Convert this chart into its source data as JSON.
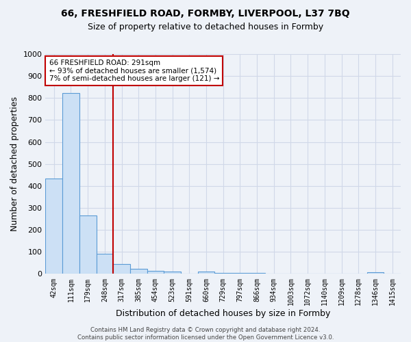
{
  "title1": "66, FRESHFIELD ROAD, FORMBY, LIVERPOOL, L37 7BQ",
  "title2": "Size of property relative to detached houses in Formby",
  "xlabel": "Distribution of detached houses by size in Formby",
  "ylabel": "Number of detached properties",
  "footnote": "Contains HM Land Registry data © Crown copyright and database right 2024.\nContains public sector information licensed under the Open Government Licence v3.0.",
  "bin_labels": [
    "42sqm",
    "111sqm",
    "179sqm",
    "248sqm",
    "317sqm",
    "385sqm",
    "454sqm",
    "523sqm",
    "591sqm",
    "660sqm",
    "729sqm",
    "797sqm",
    "866sqm",
    "934sqm",
    "1003sqm",
    "1072sqm",
    "1140sqm",
    "1209sqm",
    "1278sqm",
    "1346sqm",
    "1415sqm"
  ],
  "bar_heights": [
    433,
    822,
    265,
    92,
    46,
    22,
    15,
    10,
    0,
    10,
    5,
    5,
    5,
    0,
    0,
    0,
    0,
    0,
    0,
    8,
    0
  ],
  "bar_color": "#cce0f5",
  "bar_edge_color": "#5b9bd5",
  "vline_color": "#c00000",
  "annotation_text": "66 FRESHFIELD ROAD: 291sqm\n← 93% of detached houses are smaller (1,574)\n7% of semi-detached houses are larger (121) →",
  "annotation_box_color": "white",
  "annotation_box_edge": "#c00000",
  "ylim": [
    0,
    1000
  ],
  "yticks": [
    0,
    100,
    200,
    300,
    400,
    500,
    600,
    700,
    800,
    900,
    1000
  ],
  "grid_color": "#d0d8e8",
  "bg_color": "#eef2f8"
}
